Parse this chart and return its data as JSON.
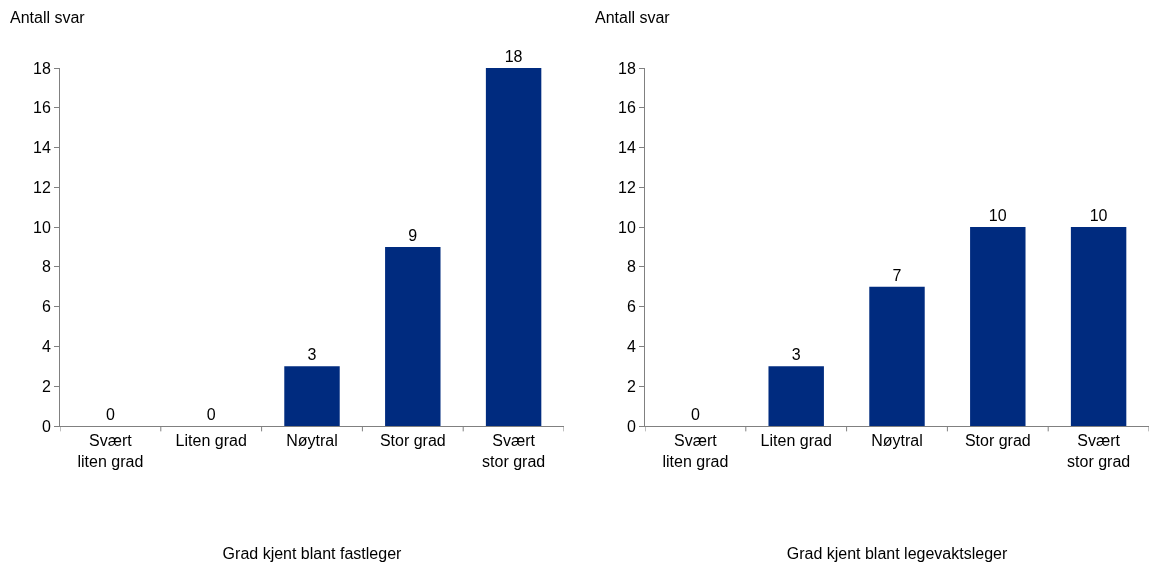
{
  "chart_data": [
    {
      "type": "bar",
      "ylabel": "Antall svar",
      "xlabel": "Grad kjent blant fastleger",
      "categories": [
        "Svært\nliten grad",
        "Liten grad",
        "Nøytral",
        "Stor grad",
        "Svært\nstor grad"
      ],
      "values": [
        0,
        0,
        3,
        9,
        18
      ],
      "color": "#002b7f",
      "ylim": [
        0,
        18
      ],
      "yticks": [
        0,
        2,
        4,
        6,
        8,
        10,
        12,
        14,
        16,
        18
      ],
      "data_labels": true
    },
    {
      "type": "bar",
      "ylabel": "Antall svar",
      "xlabel": "Grad kjent blant legevaktsleger",
      "categories": [
        "Svært\nliten grad",
        "Liten grad",
        "Nøytral",
        "Stor grad",
        "Svært\nstor grad"
      ],
      "values": [
        0,
        3,
        7,
        10,
        10
      ],
      "color": "#002b7f",
      "ylim": [
        0,
        18
      ],
      "yticks": [
        0,
        2,
        4,
        6,
        8,
        10,
        12,
        14,
        16,
        18
      ],
      "data_labels": true
    }
  ]
}
